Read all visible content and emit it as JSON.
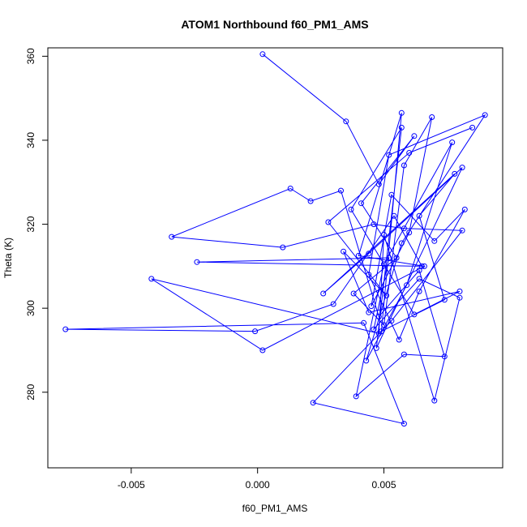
{
  "chart_data": {
    "type": "scatter",
    "title": "ATOM1 Northbound f60_PM1_AMS",
    "xlabel": "f60_PM1_AMS",
    "ylabel": "Theta (K)",
    "xlim": [
      -0.0083,
      0.0097
    ],
    "ylim": [
      262,
      362
    ],
    "x_ticks": [
      -0.005,
      0.0,
      0.005
    ],
    "x_tick_labels": [
      "-0.005",
      "0.000",
      "0.005"
    ],
    "y_ticks": [
      280,
      300,
      320,
      340,
      360
    ],
    "y_tick_labels": [
      "280",
      "300",
      "320",
      "340",
      "360"
    ],
    "grid": false,
    "connect_points": true,
    "marker": "open-circle",
    "line_color": "#0000ff",
    "marker_color": "#0000ff",
    "series": [
      {
        "points": [
          [
            0.0002,
            360.5
          ],
          [
            0.0035,
            344.5
          ],
          [
            0.0048,
            329.5
          ],
          [
            0.0062,
            341.0
          ],
          [
            0.0041,
            325.0
          ],
          [
            0.0055,
            312.0
          ],
          [
            0.0038,
            303.5
          ],
          [
            0.005,
            296.0
          ],
          [
            0.0058,
            334.0
          ],
          [
            0.0069,
            345.5
          ],
          [
            0.006,
            318.0
          ],
          [
            0.0045,
            300.5
          ],
          [
            0.0053,
            327.0
          ],
          [
            0.007,
            316.0
          ],
          [
            0.0082,
            323.5
          ],
          [
            0.0064,
            304.0
          ],
          [
            0.0056,
            292.5
          ],
          [
            0.0044,
            308.0
          ],
          [
            0.0052,
            336.5
          ],
          [
            0.009,
            346.0
          ],
          [
            0.0057,
            315.5
          ],
          [
            0.0043,
            287.5
          ],
          [
            0.0059,
            305.5
          ],
          [
            0.0077,
            339.5
          ],
          [
            0.005,
            310.5
          ],
          [
            0.0039,
            279.0
          ],
          [
            0.0058,
            289.0
          ],
          [
            0.0074,
            288.5
          ],
          [
            0.0064,
            309.0
          ],
          [
            0.0048,
            298.0
          ],
          [
            0.0033,
            328.0
          ],
          [
            0.0021,
            325.5
          ],
          [
            0.0013,
            328.5
          ],
          [
            -0.0034,
            317.0
          ],
          [
            0.001,
            314.5
          ],
          [
            0.0046,
            320.0
          ],
          [
            0.0058,
            319.0
          ],
          [
            0.0081,
            318.5
          ],
          [
            0.0053,
            297.0
          ],
          [
            0.0022,
            277.5
          ],
          [
            0.0058,
            272.5
          ],
          [
            0.0042,
            296.5
          ],
          [
            -0.0076,
            295.0
          ],
          [
            -0.0001,
            294.5
          ],
          [
            0.003,
            301.0
          ],
          [
            0.0054,
            322.0
          ],
          [
            0.0065,
            310.0
          ],
          [
            -0.0024,
            311.0
          ],
          [
            0.0052,
            312.0
          ],
          [
            0.0046,
            295.0
          ],
          [
            0.0064,
            307.0
          ],
          [
            0.008,
            302.5
          ],
          [
            0.007,
            278.0
          ],
          [
            0.005,
            317.5
          ],
          [
            0.0048,
            294.0
          ],
          [
            -0.0042,
            307.0
          ],
          [
            0.0002,
            290.0
          ],
          [
            0.0066,
            310.0
          ],
          [
            0.004,
            312.5
          ],
          [
            0.0057,
            346.5
          ],
          [
            0.0049,
            294.5
          ],
          [
            0.0074,
            302.0
          ],
          [
            0.0064,
            322.0
          ],
          [
            0.0078,
            332.0
          ],
          [
            0.0026,
            303.5
          ],
          [
            0.0044,
            313.0
          ],
          [
            0.0081,
            333.5
          ],
          [
            0.0047,
            290.5
          ],
          [
            0.0057,
            343.0
          ],
          [
            0.0037,
            323.5
          ],
          [
            0.0062,
            298.5
          ],
          [
            0.008,
            304.0
          ],
          [
            0.0044,
            299.0
          ],
          [
            0.0034,
            313.5
          ],
          [
            0.0051,
            303.0
          ],
          [
            0.0028,
            320.5
          ],
          [
            0.006,
            337.0
          ],
          [
            0.0085,
            343.0
          ]
        ]
      }
    ]
  }
}
